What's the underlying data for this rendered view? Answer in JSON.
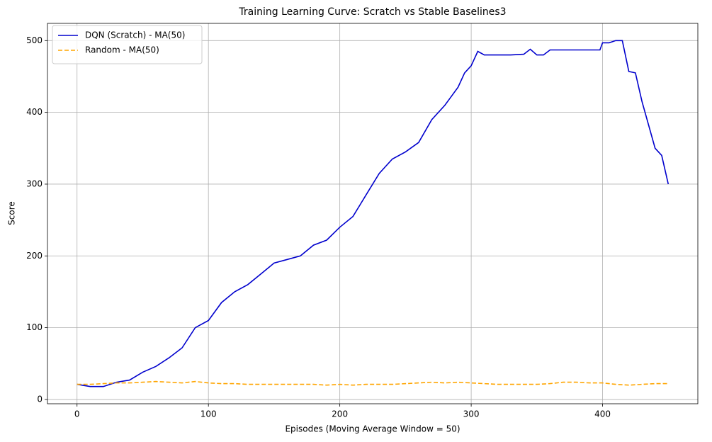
{
  "chart_data": {
    "type": "line",
    "title": "Training Learning Curve: Scratch vs Stable Baselines3",
    "x_label": "Episodes (Moving Average Window = 50)",
    "y_label": "Score",
    "series": [
      {
        "name": "DQN (Scratch) - MA(50)",
        "color": "#0000cd",
        "dash": "solid",
        "x": [
          0,
          10,
          20,
          30,
          40,
          50,
          60,
          70,
          80,
          90,
          100,
          110,
          120,
          130,
          140,
          150,
          160,
          170,
          180,
          190,
          200,
          210,
          220,
          230,
          240,
          250,
          260,
          270,
          280,
          290,
          295,
          300,
          305,
          310,
          320,
          330,
          340,
          345,
          350,
          355,
          360,
          370,
          380,
          390,
          398,
          400,
          405,
          410,
          415,
          420,
          425,
          430,
          440,
          445,
          450
        ],
        "values": [
          21,
          18,
          18,
          24,
          27,
          38,
          46,
          58,
          72,
          100,
          110,
          135,
          150,
          160,
          175,
          190,
          195,
          200,
          215,
          222,
          240,
          255,
          285,
          315,
          335,
          345,
          358,
          390,
          410,
          435,
          455,
          465,
          485,
          480,
          480,
          480,
          481,
          488,
          480,
          480,
          487,
          487,
          487,
          487,
          487,
          497,
          497,
          500,
          500,
          457,
          455,
          415,
          350,
          340,
          300
        ]
      },
      {
        "name": "Random - MA(50)",
        "color": "#ffa500",
        "dash": "dashed",
        "x": [
          0,
          10,
          20,
          30,
          40,
          50,
          60,
          70,
          80,
          90,
          100,
          110,
          120,
          130,
          140,
          150,
          160,
          170,
          180,
          190,
          200,
          210,
          220,
          230,
          240,
          250,
          260,
          270,
          280,
          290,
          300,
          310,
          320,
          330,
          340,
          350,
          360,
          370,
          380,
          390,
          400,
          410,
          420,
          430,
          440,
          450
        ],
        "values": [
          21,
          21,
          22,
          23,
          23,
          24,
          25,
          24,
          23,
          25,
          23,
          22,
          22,
          21,
          21,
          21,
          21,
          21,
          21,
          20,
          21,
          20,
          21,
          21,
          21,
          22,
          23,
          24,
          23,
          24,
          23,
          22,
          21,
          21,
          21,
          21,
          22,
          24,
          24,
          23,
          23,
          21,
          20,
          21,
          22,
          22
        ]
      }
    ],
    "xlim": [
      -22.5,
      472.5
    ],
    "xticks": [
      0,
      100,
      200,
      300,
      400
    ],
    "ylim": [
      -6,
      524
    ],
    "yticks": [
      0,
      100,
      200,
      300,
      400,
      500
    ],
    "grid": true,
    "legend": "upper left"
  }
}
